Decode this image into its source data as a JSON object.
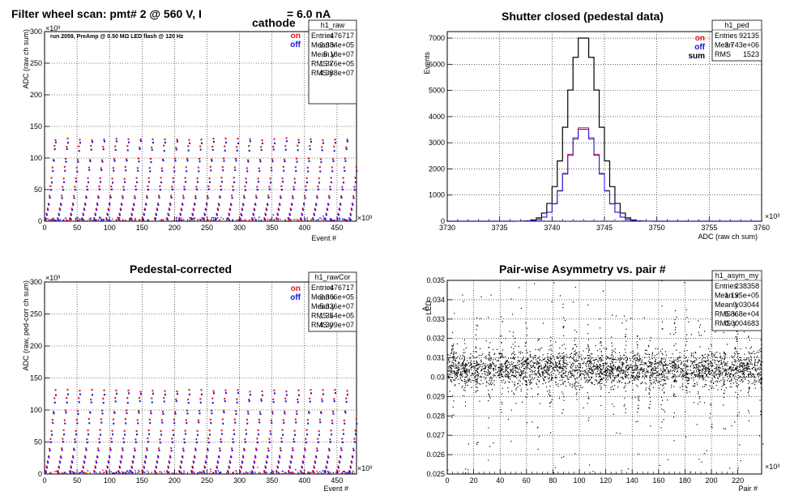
{
  "chart_data": [
    {
      "id": "raw",
      "type": "scatter",
      "title": "Filter wheel scan: pmt#   2 @   560 V, I",
      "title_sub": "cathode",
      "title_end": "= 6.0 nA",
      "note": "run 2059, PreAmp @ 0.50 MΩ   LED flash @  120 Hz",
      "xlabel": "Event #",
      "ylabel": "ADC (raw ch sum)",
      "x_exponent": "×10³",
      "y_exponent": "×10³",
      "xlim": [
        0,
        480
      ],
      "ylim": [
        0,
        300
      ],
      "xticks": [
        0,
        50,
        100,
        150,
        200,
        250,
        300,
        350,
        400,
        450
      ],
      "yticks": [
        0,
        50,
        100,
        150,
        200,
        250,
        300
      ],
      "grid": true,
      "legend": {
        "placement": "top-right",
        "entries": [
          {
            "label": "on",
            "color": "#e8141e"
          },
          {
            "label": "off",
            "color": "#1414e8"
          }
        ]
      },
      "stats": {
        "name": "h1_raw",
        "rows": [
          {
            "label": "Entries",
            "value": "476717"
          },
          {
            "label": "Mean x",
            "value": "2.384e+05"
          },
          {
            "label": "Mean y",
            "value": "5.18e+07"
          },
          {
            "label": "RMS x",
            "value": "1.376e+05"
          },
          {
            "label": "RMS y",
            "value": "4.388e+07"
          }
        ]
      },
      "levels_on": [
        5,
        12,
        20,
        28,
        40,
        55,
        68,
        85,
        98,
        118,
        130
      ],
      "levels_off": [
        3,
        10,
        18,
        26,
        37,
        50,
        62,
        80,
        95,
        113,
        125
      ],
      "cycle_period": 18.7
    },
    {
      "id": "ped",
      "type": "line",
      "title": "Shutter closed (pedestal data)",
      "xlabel": "ADC (raw ch sum)",
      "ylabel": "Events",
      "x_exponent": "×10³",
      "xlim": [
        3730,
        3760
      ],
      "ylim": [
        0,
        7250
      ],
      "xticks": [
        3730,
        3735,
        3740,
        3745,
        3750,
        3755,
        3760
      ],
      "yticks": [
        0,
        1000,
        2000,
        3000,
        4000,
        5000,
        6000,
        7000
      ],
      "grid": true,
      "legend": {
        "placement": "top-right",
        "entries": [
          {
            "label": "on",
            "color": "#e8141e"
          },
          {
            "label": "off",
            "color": "#1414e8"
          },
          {
            "label": "sum",
            "color": "#000000"
          }
        ]
      },
      "stats": {
        "name": "h1_ped",
        "rows": [
          {
            "label": "Entries",
            "value": "92135"
          },
          {
            "label": "Mean",
            "value": "3.743e+06"
          },
          {
            "label": "RMS",
            "value": "1523"
          }
        ]
      },
      "peak_mean": 3743.0,
      "peak_sigma": 1.5,
      "series": [
        {
          "name": "sum",
          "peak": 7100,
          "color": "#000000"
        },
        {
          "name": "on",
          "peak": 3620,
          "color": "#e8141e"
        },
        {
          "name": "off",
          "peak": 3560,
          "color": "#1414e8"
        }
      ]
    },
    {
      "id": "rawcor",
      "type": "scatter",
      "title": "Pedestal-corrected",
      "xlabel": "Event #",
      "ylabel": "ADC (raw, ped-corr ch sum)",
      "x_exponent": "×10³",
      "y_exponent": "×10³",
      "xlim": [
        0,
        480
      ],
      "ylim": [
        0,
        300
      ],
      "xticks": [
        0,
        50,
        100,
        150,
        200,
        250,
        300,
        350,
        400,
        450
      ],
      "yticks": [
        0,
        50,
        100,
        150,
        200,
        250,
        300
      ],
      "grid": true,
      "legend": {
        "placement": "top-right",
        "entries": [
          {
            "label": "on",
            "color": "#e8141e"
          },
          {
            "label": "off",
            "color": "#1414e8"
          }
        ]
      },
      "stats": {
        "name": "h1_rawCor",
        "rows": [
          {
            "label": "Entries",
            "value": "476717"
          },
          {
            "label": "Mean x",
            "value": "2.366e+05"
          },
          {
            "label": "Mean y",
            "value": "5.326e+07"
          },
          {
            "label": "RMS x",
            "value": "1.354e+05"
          },
          {
            "label": "RMS y",
            "value": "4.309e+07"
          }
        ]
      },
      "levels_on": [
        5,
        12,
        20,
        28,
        40,
        55,
        68,
        85,
        98,
        118,
        130
      ],
      "levels_off": [
        3,
        10,
        18,
        26,
        37,
        50,
        62,
        80,
        95,
        113,
        125
      ],
      "cycle_period": 18.7
    },
    {
      "id": "asym",
      "type": "scatter",
      "title": "Pair-wise Asymmetry vs. pair #",
      "xlabel": "Pair #",
      "ylabel": "A",
      "ylabel_sub": "LED",
      "x_exponent": "×10³",
      "xlim": [
        0,
        238
      ],
      "ylim": [
        0.025,
        0.035
      ],
      "xticks": [
        0,
        20,
        40,
        60,
        80,
        100,
        120,
        140,
        160,
        180,
        200,
        220
      ],
      "yticks": [
        0.025,
        0.026,
        0.027,
        0.028,
        0.029,
        0.03,
        0.031,
        0.032,
        0.033,
        0.034,
        0.035
      ],
      "ytick_labels": [
        "0.025",
        "0.026",
        "0.027",
        "0.028",
        "0.029",
        "0.03",
        "0.031",
        "0.032",
        "0.033",
        "0.034",
        "0.035"
      ],
      "grid": true,
      "stats": {
        "name": "h1_asym_my",
        "rows": [
          {
            "label": "Entries",
            "value": "238358"
          },
          {
            "label": "Mean x",
            "value": "1.195e+05"
          },
          {
            "label": "Mean y",
            "value": "0.03044"
          },
          {
            "label": "RMS x",
            "value": "6.868e+04"
          },
          {
            "label": "RMS y",
            "value": "0.0004683"
          }
        ]
      },
      "band_center": 0.03044,
      "band_halfwidth": 0.0008,
      "spike_period": 9.35,
      "spike_first": 3.5
    }
  ]
}
